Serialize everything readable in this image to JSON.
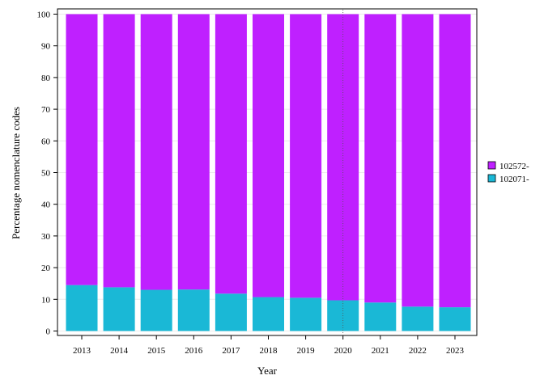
{
  "chart_data": {
    "type": "bar",
    "stacked": true,
    "categories": [
      "2013",
      "2014",
      "2015",
      "2016",
      "2017",
      "2018",
      "2019",
      "2020",
      "2021",
      "2022",
      "2023"
    ],
    "series": [
      {
        "name": "102071-",
        "color": "#1ab8d6",
        "values": [
          14.5,
          13.8,
          13.0,
          13.1,
          11.8,
          10.7,
          10.5,
          9.7,
          9.0,
          7.7,
          7.5
        ]
      },
      {
        "name": "102572-",
        "color": "#bf20ff",
        "values": [
          85.5,
          86.2,
          87.0,
          86.9,
          88.2,
          89.3,
          89.5,
          90.3,
          91.0,
          92.3,
          92.5
        ]
      }
    ],
    "xlabel": "Year",
    "ylabel": "Percentage nomenclature codes",
    "ylim": [
      0,
      100
    ],
    "yticks": [
      0,
      10,
      20,
      30,
      40,
      50,
      60,
      70,
      80,
      90,
      100
    ],
    "grid": true,
    "reference_line_x": "2020",
    "legend_position": "right",
    "legend_order": [
      "102572-",
      "102071-"
    ]
  }
}
